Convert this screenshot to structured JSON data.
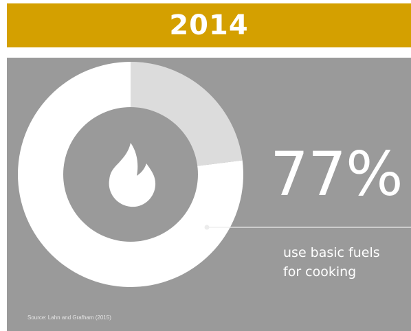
{
  "banner": {
    "year": "2014",
    "color": "#d4a000"
  },
  "panel": {
    "background": "#9a9a9a"
  },
  "icon": "fire-icon",
  "chart_data": {
    "type": "pie",
    "donut": true,
    "slices": [
      {
        "value": 77,
        "color": "#ffffff"
      },
      {
        "value": 23,
        "color": "#dcdcdc"
      }
    ],
    "center_fill": "#9a9a9a"
  },
  "stat": {
    "value": "77%",
    "caption_line1": "use basic fuels",
    "caption_line2": "for cooking"
  },
  "source": "Source: Lahn and Grafham (2015)"
}
